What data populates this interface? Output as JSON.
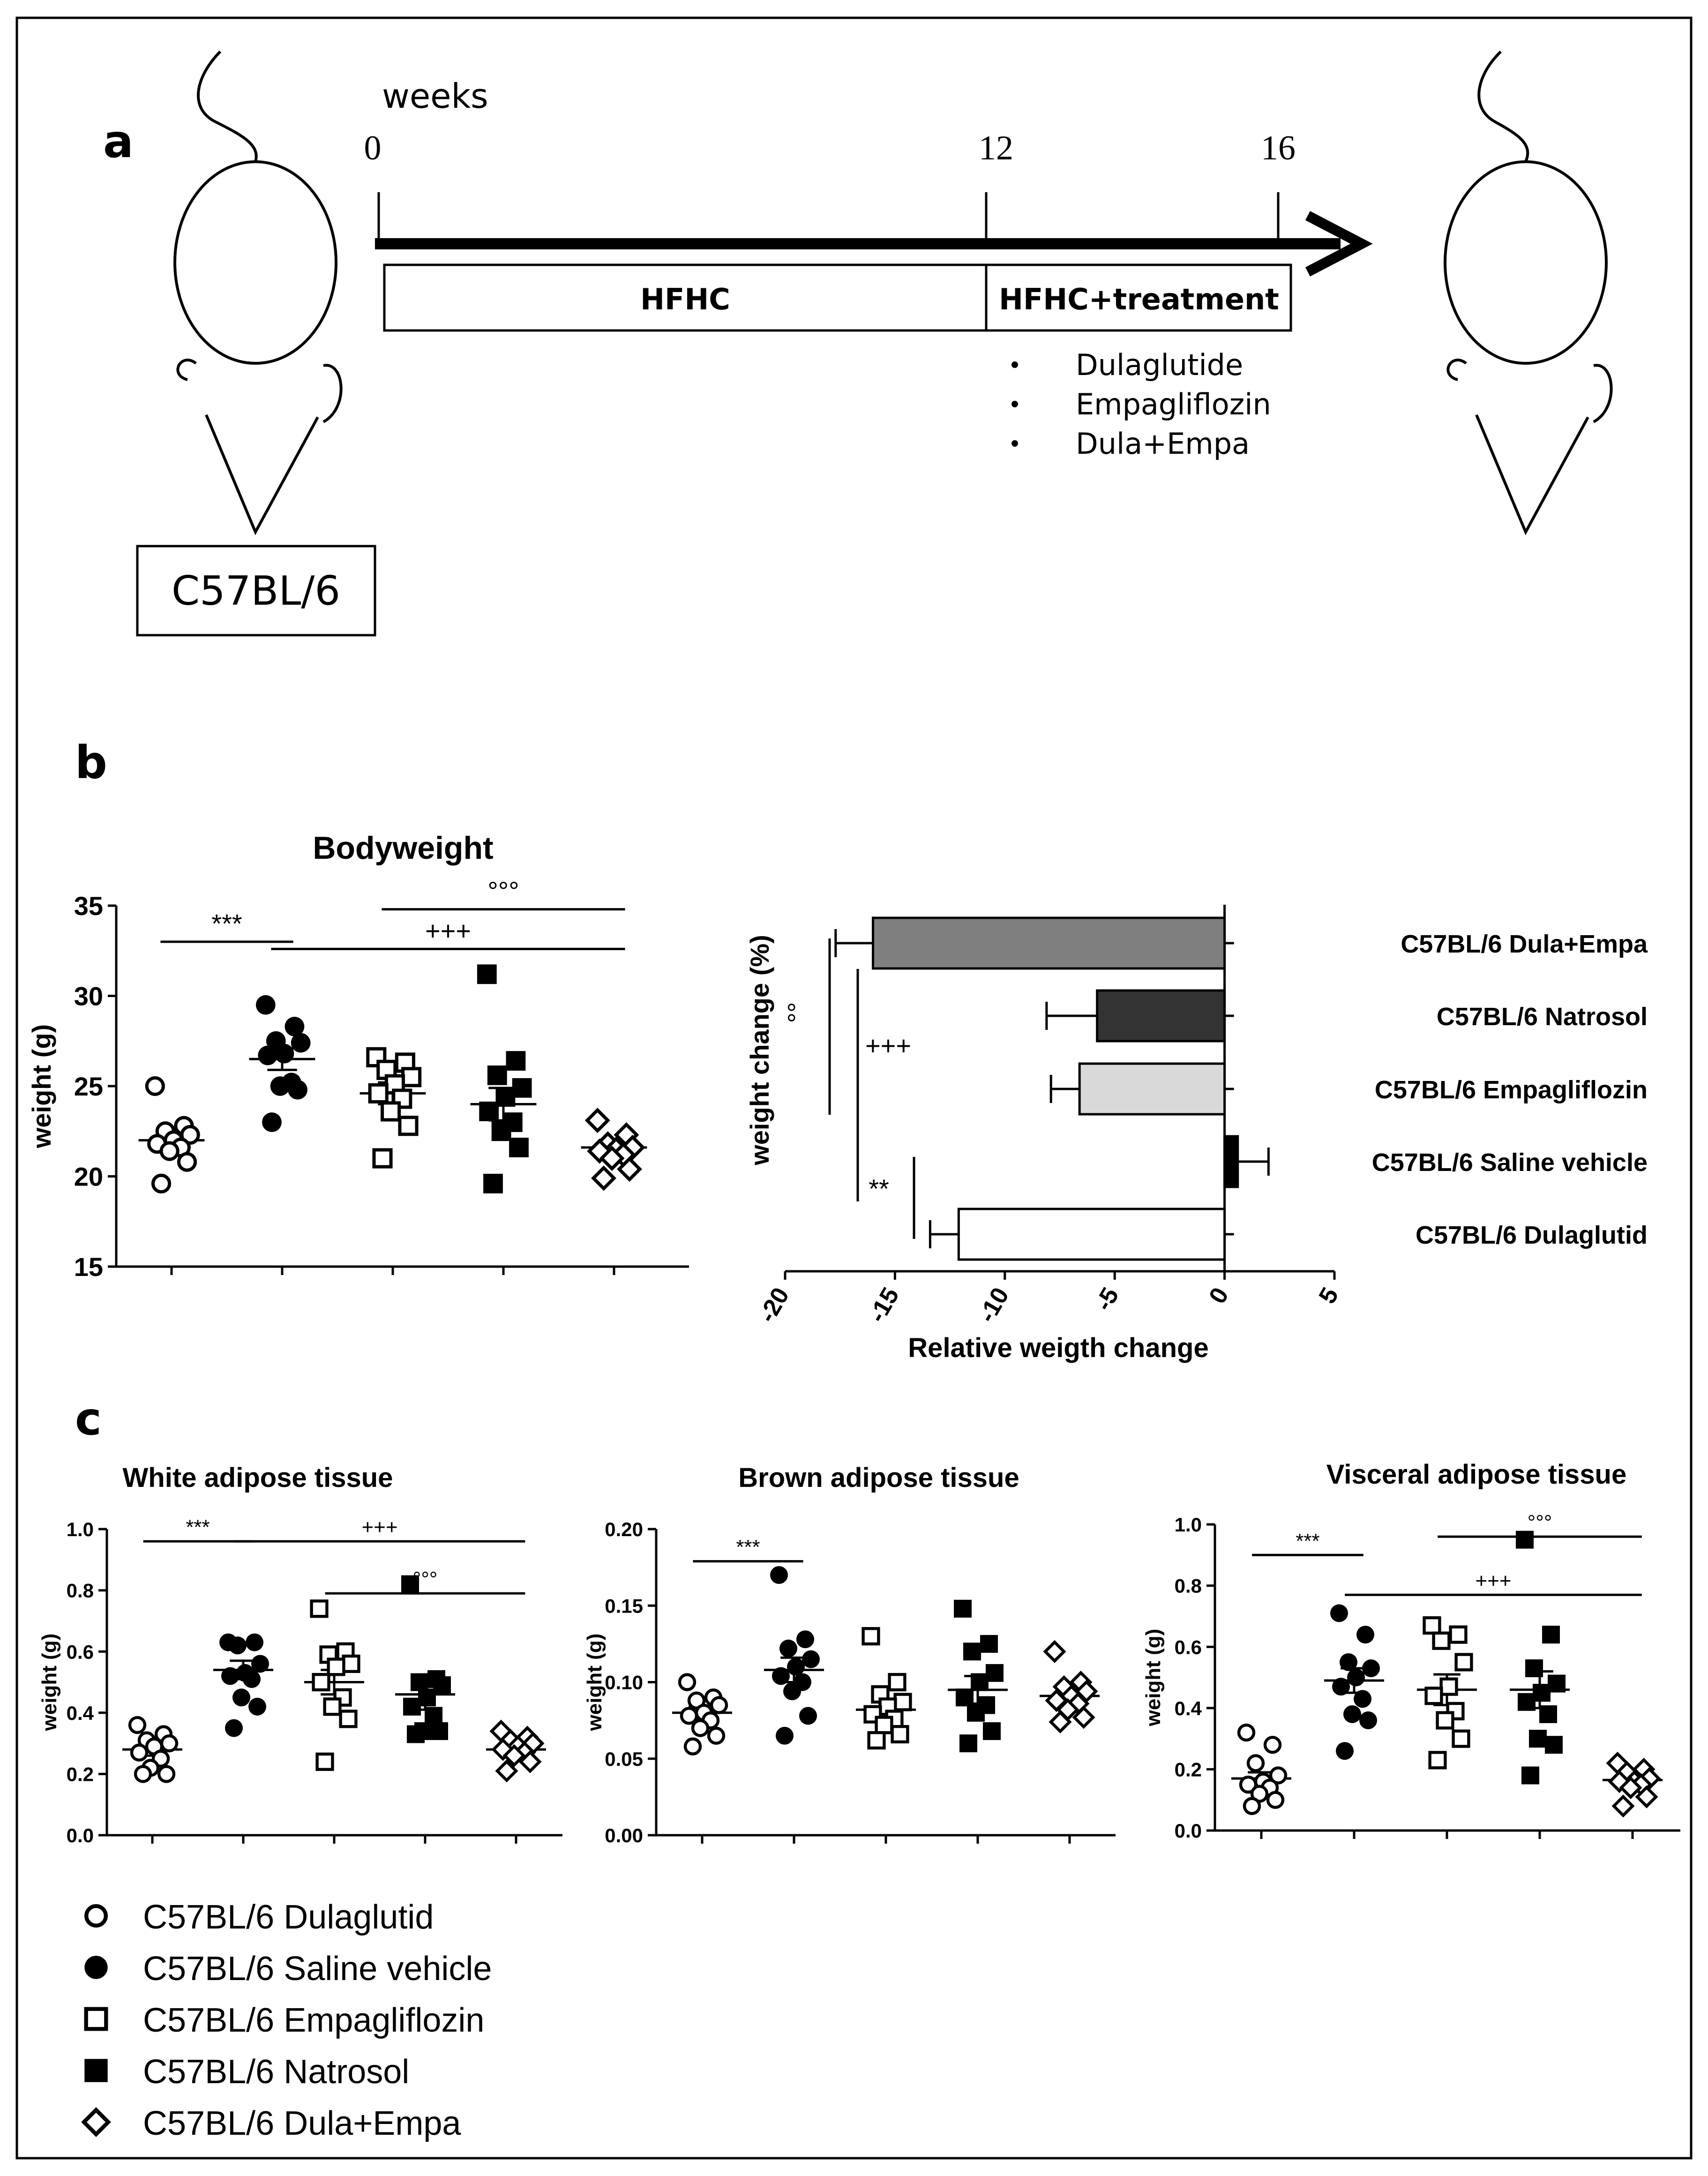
{
  "panel_a": {
    "label": "a",
    "strain": "C57BL/6",
    "weeks_label": "weeks",
    "week_ticks": [
      "0",
      "12",
      "16"
    ],
    "phase1": "HFHC",
    "phase2": "HFHC+treatment",
    "treatments": [
      "Dulaglutide",
      "Empagliflozin",
      "Dula+Empa"
    ]
  },
  "legend": [
    {
      "label": "C57BL/6 Dulaglutid",
      "marker": "open-circle"
    },
    {
      "label": "C57BL/6 Saline vehicle",
      "marker": "filled-circle"
    },
    {
      "label": "C57BL/6 Empagliflozin",
      "marker": "open-square"
    },
    {
      "label": "C57BL/6 Natrosol",
      "marker": "filled-square"
    },
    {
      "label": "C57BL/6 Dula+Empa",
      "marker": "open-diamond"
    }
  ],
  "chart_data": [
    {
      "id": "bodyweight",
      "panel": "b",
      "type": "scatter",
      "title": "Bodyweight",
      "xlabel": "",
      "ylabel": "weight (g)",
      "ylim": [
        15,
        35
      ],
      "yticks": [
        "15",
        "20",
        "25",
        "30",
        "35"
      ],
      "series": [
        {
          "name": "C57BL/6 Dulaglutid",
          "marker": "open-circle",
          "mean": 22.0,
          "sem": 0.5,
          "values": [
            25.0,
            22.8,
            22.5,
            22.3,
            22.0,
            21.8,
            21.6,
            21.4,
            20.8,
            19.6
          ]
        },
        {
          "name": "C57BL/6 Saline vehicle",
          "marker": "filled-circle",
          "mean": 26.5,
          "sem": 0.6,
          "values": [
            29.5,
            28.3,
            27.5,
            27.4,
            26.8,
            26.7,
            25.2,
            25.0,
            24.8,
            23.0
          ]
        },
        {
          "name": "C57BL/6 Empagliflozin",
          "marker": "open-square",
          "mean": 24.6,
          "sem": 0.6,
          "values": [
            26.6,
            26.3,
            25.9,
            25.5,
            25.1,
            24.6,
            24.3,
            23.6,
            22.8,
            21.0
          ]
        },
        {
          "name": "C57BL/6 Natrosol",
          "marker": "filled-square",
          "mean": 24.0,
          "sem": 0.9,
          "values": [
            31.2,
            26.4,
            25.6,
            24.9,
            24.4,
            23.6,
            23.0,
            22.5,
            21.6,
            19.6
          ]
        },
        {
          "name": "C57BL/6 Dula+Empa",
          "marker": "open-diamond",
          "mean": 21.6,
          "sem": 0.3,
          "values": [
            23.1,
            22.3,
            21.8,
            21.6,
            21.5,
            21.4,
            21.2,
            21.0,
            20.4,
            19.9
          ]
        }
      ],
      "annotations": [
        {
          "text": "***",
          "from": 0,
          "to": 1,
          "y": 33.0
        },
        {
          "text": "+++",
          "from": 1,
          "to": 4,
          "y": 32.6
        },
        {
          "text": "°°°",
          "from": 2,
          "to": 4,
          "y": 34.8
        }
      ]
    },
    {
      "id": "weight-change",
      "panel": "b",
      "type": "bar",
      "orientation": "horizontal",
      "title": "",
      "xlabel": "Relative weigth change",
      "ylabel": "weight change (%)",
      "xlim": [
        -20,
        5
      ],
      "xticks": [
        "-20",
        "-15",
        "-10",
        "-5",
        "0",
        "5"
      ],
      "categories": [
        "C57BL/6 Dula+Empa",
        "C57BL/6 Natrosol",
        "C57BL/6 Empagliflozin",
        "C57BL/6 Saline vehicle",
        "C57BL/6 Dulaglutid"
      ],
      "values": [
        -16.0,
        -5.8,
        -6.6,
        0.6,
        -12.1
      ],
      "errors": [
        1.7,
        2.3,
        1.3,
        1.4,
        1.3
      ],
      "colors": [
        "#7f7f7f",
        "#333333",
        "#d9d9d9",
        "#000000",
        "#ffffff"
      ],
      "annotations": [
        {
          "text": "°°",
          "from": 0,
          "to": 2
        },
        {
          "text": "+++",
          "from": 0,
          "to": 4
        },
        {
          "text": "**",
          "from": 3,
          "to": 4
        }
      ]
    },
    {
      "id": "white-adipose",
      "panel": "c",
      "type": "scatter",
      "title": "White adipose tissue",
      "xlabel": "",
      "ylabel": "weight (g)",
      "ylim": [
        0,
        1.0
      ],
      "yticks": [
        "0.0",
        "0.2",
        "0.4",
        "0.6",
        "0.8",
        "1.0"
      ],
      "series": [
        {
          "name": "C57BL/6 Dulaglutid",
          "marker": "open-circle",
          "mean": 0.28,
          "sem": 0.02,
          "values": [
            0.36,
            0.33,
            0.31,
            0.3,
            0.29,
            0.27,
            0.25,
            0.22,
            0.2,
            0.2
          ]
        },
        {
          "name": "C57BL/6 Saline vehicle",
          "marker": "filled-circle",
          "mean": 0.54,
          "sem": 0.03,
          "values": [
            0.63,
            0.63,
            0.62,
            0.56,
            0.53,
            0.52,
            0.51,
            0.45,
            0.42,
            0.35
          ]
        },
        {
          "name": "C57BL/6 Empagliflozin",
          "marker": "open-square",
          "mean": 0.5,
          "sem": 0.04,
          "values": [
            0.74,
            0.6,
            0.59,
            0.56,
            0.55,
            0.5,
            0.45,
            0.42,
            0.38,
            0.24
          ]
        },
        {
          "name": "C57BL/6 Natrosol",
          "marker": "filled-square",
          "mean": 0.46,
          "sem": 0.05,
          "values": [
            0.82,
            0.51,
            0.5,
            0.49,
            0.45,
            0.42,
            0.39,
            0.34,
            0.34,
            0.33
          ]
        },
        {
          "name": "C57BL/6 Dula+Empa",
          "marker": "open-diamond",
          "mean": 0.28,
          "sem": 0.015,
          "values": [
            0.34,
            0.32,
            0.31,
            0.3,
            0.29,
            0.28,
            0.27,
            0.26,
            0.24,
            0.21
          ]
        }
      ],
      "annotations": [
        {
          "text": "***",
          "from": 0,
          "to": 1,
          "y": 0.96
        },
        {
          "text": "+++",
          "from": 1,
          "to": 4,
          "y": 0.96
        },
        {
          "text": "°°°",
          "from": 2,
          "to": 4,
          "y": 0.79
        }
      ]
    },
    {
      "id": "brown-adipose",
      "panel": "c",
      "type": "scatter",
      "title": "Brown adipose tissue",
      "xlabel": "",
      "ylabel": "weight (g)",
      "ylim": [
        0,
        0.2
      ],
      "yticks": [
        "0.00",
        "0.05",
        "0.10",
        "0.15",
        "0.20"
      ],
      "series": [
        {
          "name": "C57BL/6 Dulaglutid",
          "marker": "open-circle",
          "mean": 0.08,
          "sem": 0.004,
          "values": [
            0.1,
            0.09,
            0.088,
            0.085,
            0.08,
            0.078,
            0.075,
            0.07,
            0.065,
            0.058
          ]
        },
        {
          "name": "C57BL/6 Saline vehicle",
          "marker": "filled-circle",
          "mean": 0.108,
          "sem": 0.008,
          "values": [
            0.17,
            0.128,
            0.122,
            0.115,
            0.11,
            0.104,
            0.1,
            0.094,
            0.078,
            0.065
          ]
        },
        {
          "name": "C57BL/6 Empagliflozin",
          "marker": "open-square",
          "mean": 0.082,
          "sem": 0.006,
          "values": [
            0.13,
            0.1,
            0.092,
            0.087,
            0.084,
            0.079,
            0.076,
            0.072,
            0.066,
            0.062
          ]
        },
        {
          "name": "C57BL/6 Natrosol",
          "marker": "filled-square",
          "mean": 0.095,
          "sem": 0.009,
          "values": [
            0.148,
            0.125,
            0.12,
            0.106,
            0.1,
            0.09,
            0.085,
            0.08,
            0.068,
            0.06
          ]
        },
        {
          "name": "C57BL/6 Dula+Empa",
          "marker": "open-diamond",
          "mean": 0.091,
          "sem": 0.004,
          "values": [
            0.12,
            0.1,
            0.097,
            0.094,
            0.091,
            0.088,
            0.086,
            0.082,
            0.077,
            0.074
          ]
        }
      ],
      "annotations": [
        {
          "text": "***",
          "from": 0,
          "to": 1,
          "y": 0.179
        }
      ]
    },
    {
      "id": "visceral-adipose",
      "panel": "c",
      "type": "scatter",
      "title": "Visceral adipose tissue",
      "xlabel": "",
      "ylabel": "weight (g)",
      "ylim": [
        0,
        1.0
      ],
      "yticks": [
        "0.0",
        "0.2",
        "0.4",
        "0.6",
        "0.8",
        "1.0"
      ],
      "series": [
        {
          "name": "C57BL/6 Dulaglutid",
          "marker": "open-circle",
          "mean": 0.17,
          "sem": 0.02,
          "values": [
            0.32,
            0.28,
            0.22,
            0.18,
            0.16,
            0.15,
            0.14,
            0.12,
            0.1,
            0.08
          ]
        },
        {
          "name": "C57BL/6 Saline vehicle",
          "marker": "filled-circle",
          "mean": 0.49,
          "sem": 0.04,
          "values": [
            0.71,
            0.64,
            0.55,
            0.53,
            0.5,
            0.47,
            0.43,
            0.38,
            0.36,
            0.26
          ]
        },
        {
          "name": "C57BL/6 Empagliflozin",
          "marker": "open-square",
          "mean": 0.46,
          "sem": 0.05,
          "values": [
            0.67,
            0.64,
            0.62,
            0.55,
            0.47,
            0.44,
            0.39,
            0.36,
            0.3,
            0.23
          ]
        },
        {
          "name": "C57BL/6 Natrosol",
          "marker": "filled-square",
          "mean": 0.46,
          "sem": 0.06,
          "values": [
            0.95,
            0.64,
            0.53,
            0.48,
            0.45,
            0.42,
            0.38,
            0.3,
            0.28,
            0.18
          ]
        },
        {
          "name": "C57BL/6 Dula+Empa",
          "marker": "open-diamond",
          "mean": 0.165,
          "sem": 0.015,
          "values": [
            0.22,
            0.2,
            0.19,
            0.17,
            0.16,
            0.16,
            0.15,
            0.14,
            0.11,
            0.08
          ]
        }
      ],
      "annotations": [
        {
          "text": "***",
          "from": 0,
          "to": 1,
          "y": 0.9
        },
        {
          "text": "°°°",
          "from": 2,
          "to": 4,
          "y": 0.96
        },
        {
          "text": "+++",
          "from": 1,
          "to": 4,
          "y": 0.77
        }
      ]
    }
  ]
}
